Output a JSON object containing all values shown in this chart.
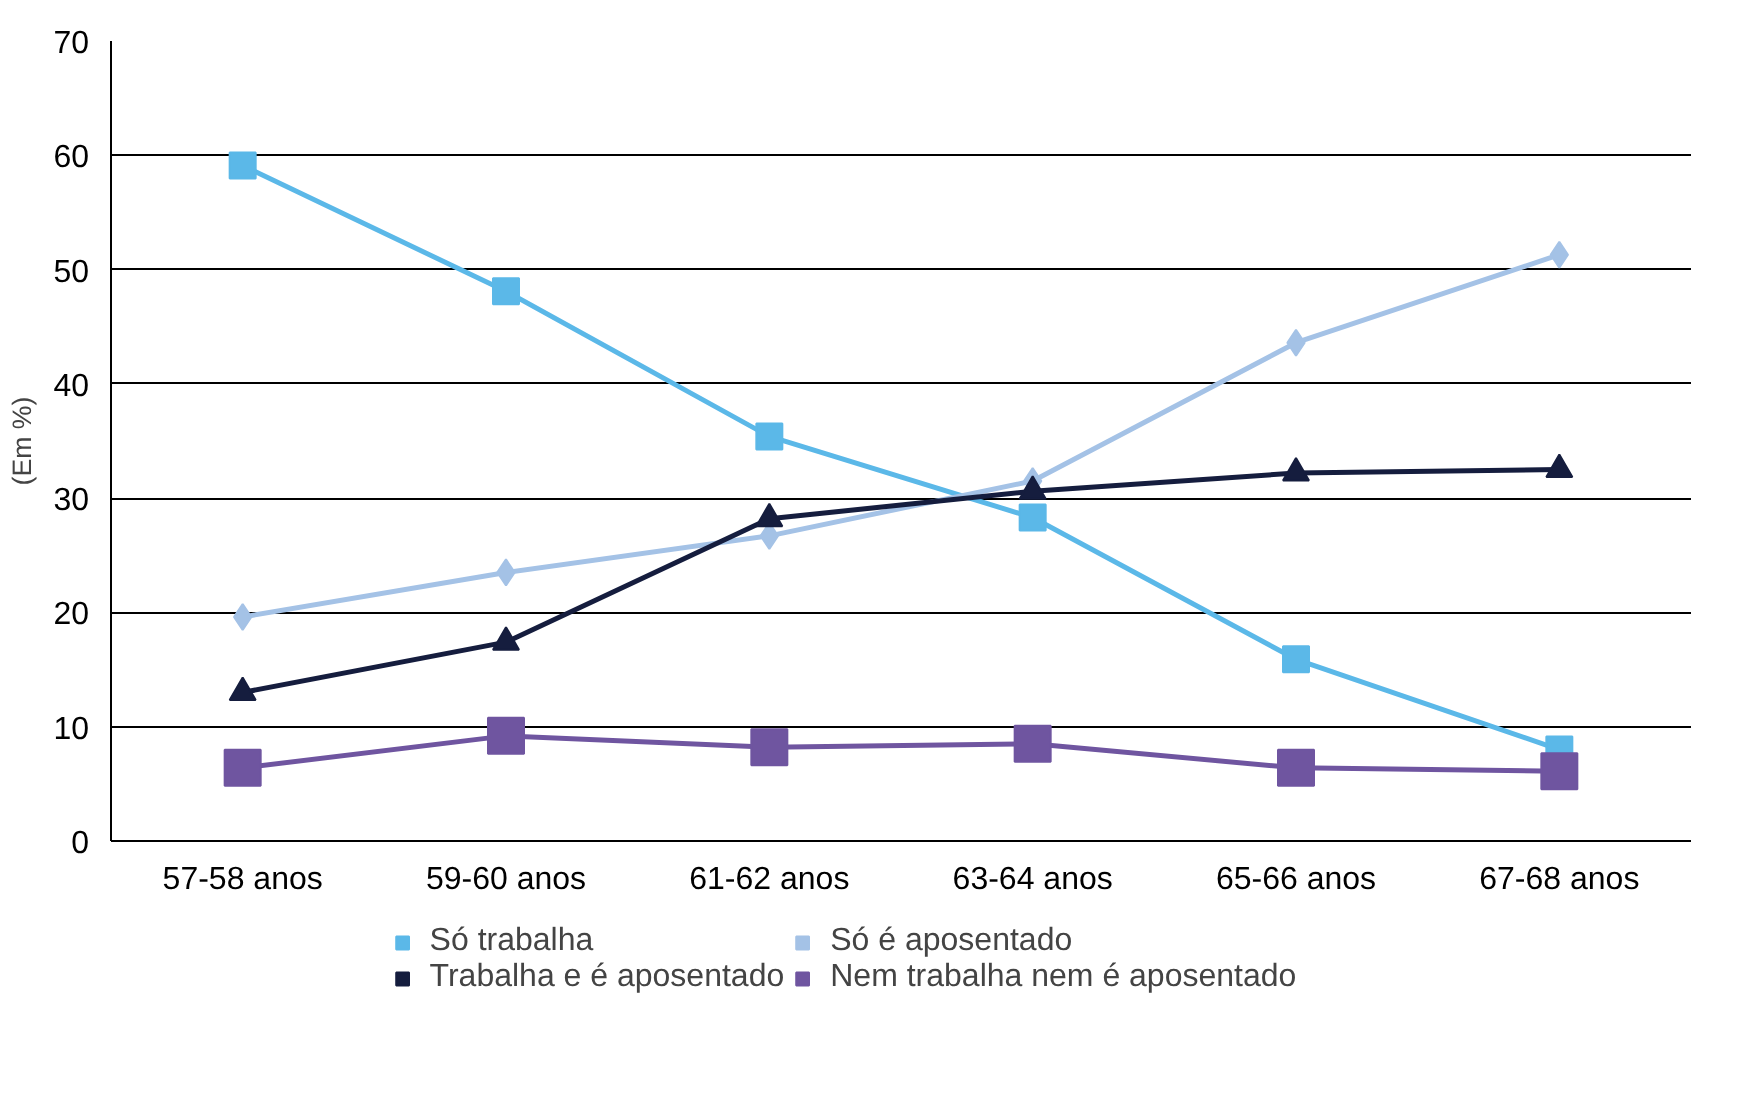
{
  "chart_data": {
    "type": "line",
    "ylabel": "(Em %)",
    "categories": [
      "57-58 anos",
      "59-60 anos",
      "61-62 anos",
      "63-64 anos",
      "65-66 anos",
      "67-68 anos"
    ],
    "series": [
      {
        "name": "Só trabalha",
        "color": "#5bb8e8",
        "marker": "square",
        "values": [
          59.1,
          48.1,
          35.4,
          28.3,
          15.9,
          8.0
        ]
      },
      {
        "name": "Só é aposentado",
        "color": "#a4c2e6",
        "marker": "diamond",
        "values": [
          19.6,
          23.5,
          26.7,
          31.5,
          43.6,
          51.3
        ]
      },
      {
        "name": "Trabalha e é aposentado",
        "color": "#151d3e",
        "marker": "triangle",
        "values": [
          13.0,
          17.4,
          28.2,
          30.6,
          32.2,
          32.5
        ]
      },
      {
        "name": "Nem trabalha nem é aposentado",
        "color": "#6f55a0",
        "marker": "square",
        "values": [
          6.4,
          9.2,
          8.2,
          8.5,
          6.4,
          6.1
        ]
      }
    ],
    "ylim": [
      0,
      70
    ],
    "yticks": [
      0,
      10,
      20,
      30,
      40,
      50,
      60,
      70
    ],
    "grid": "y",
    "legend": "bottom"
  }
}
